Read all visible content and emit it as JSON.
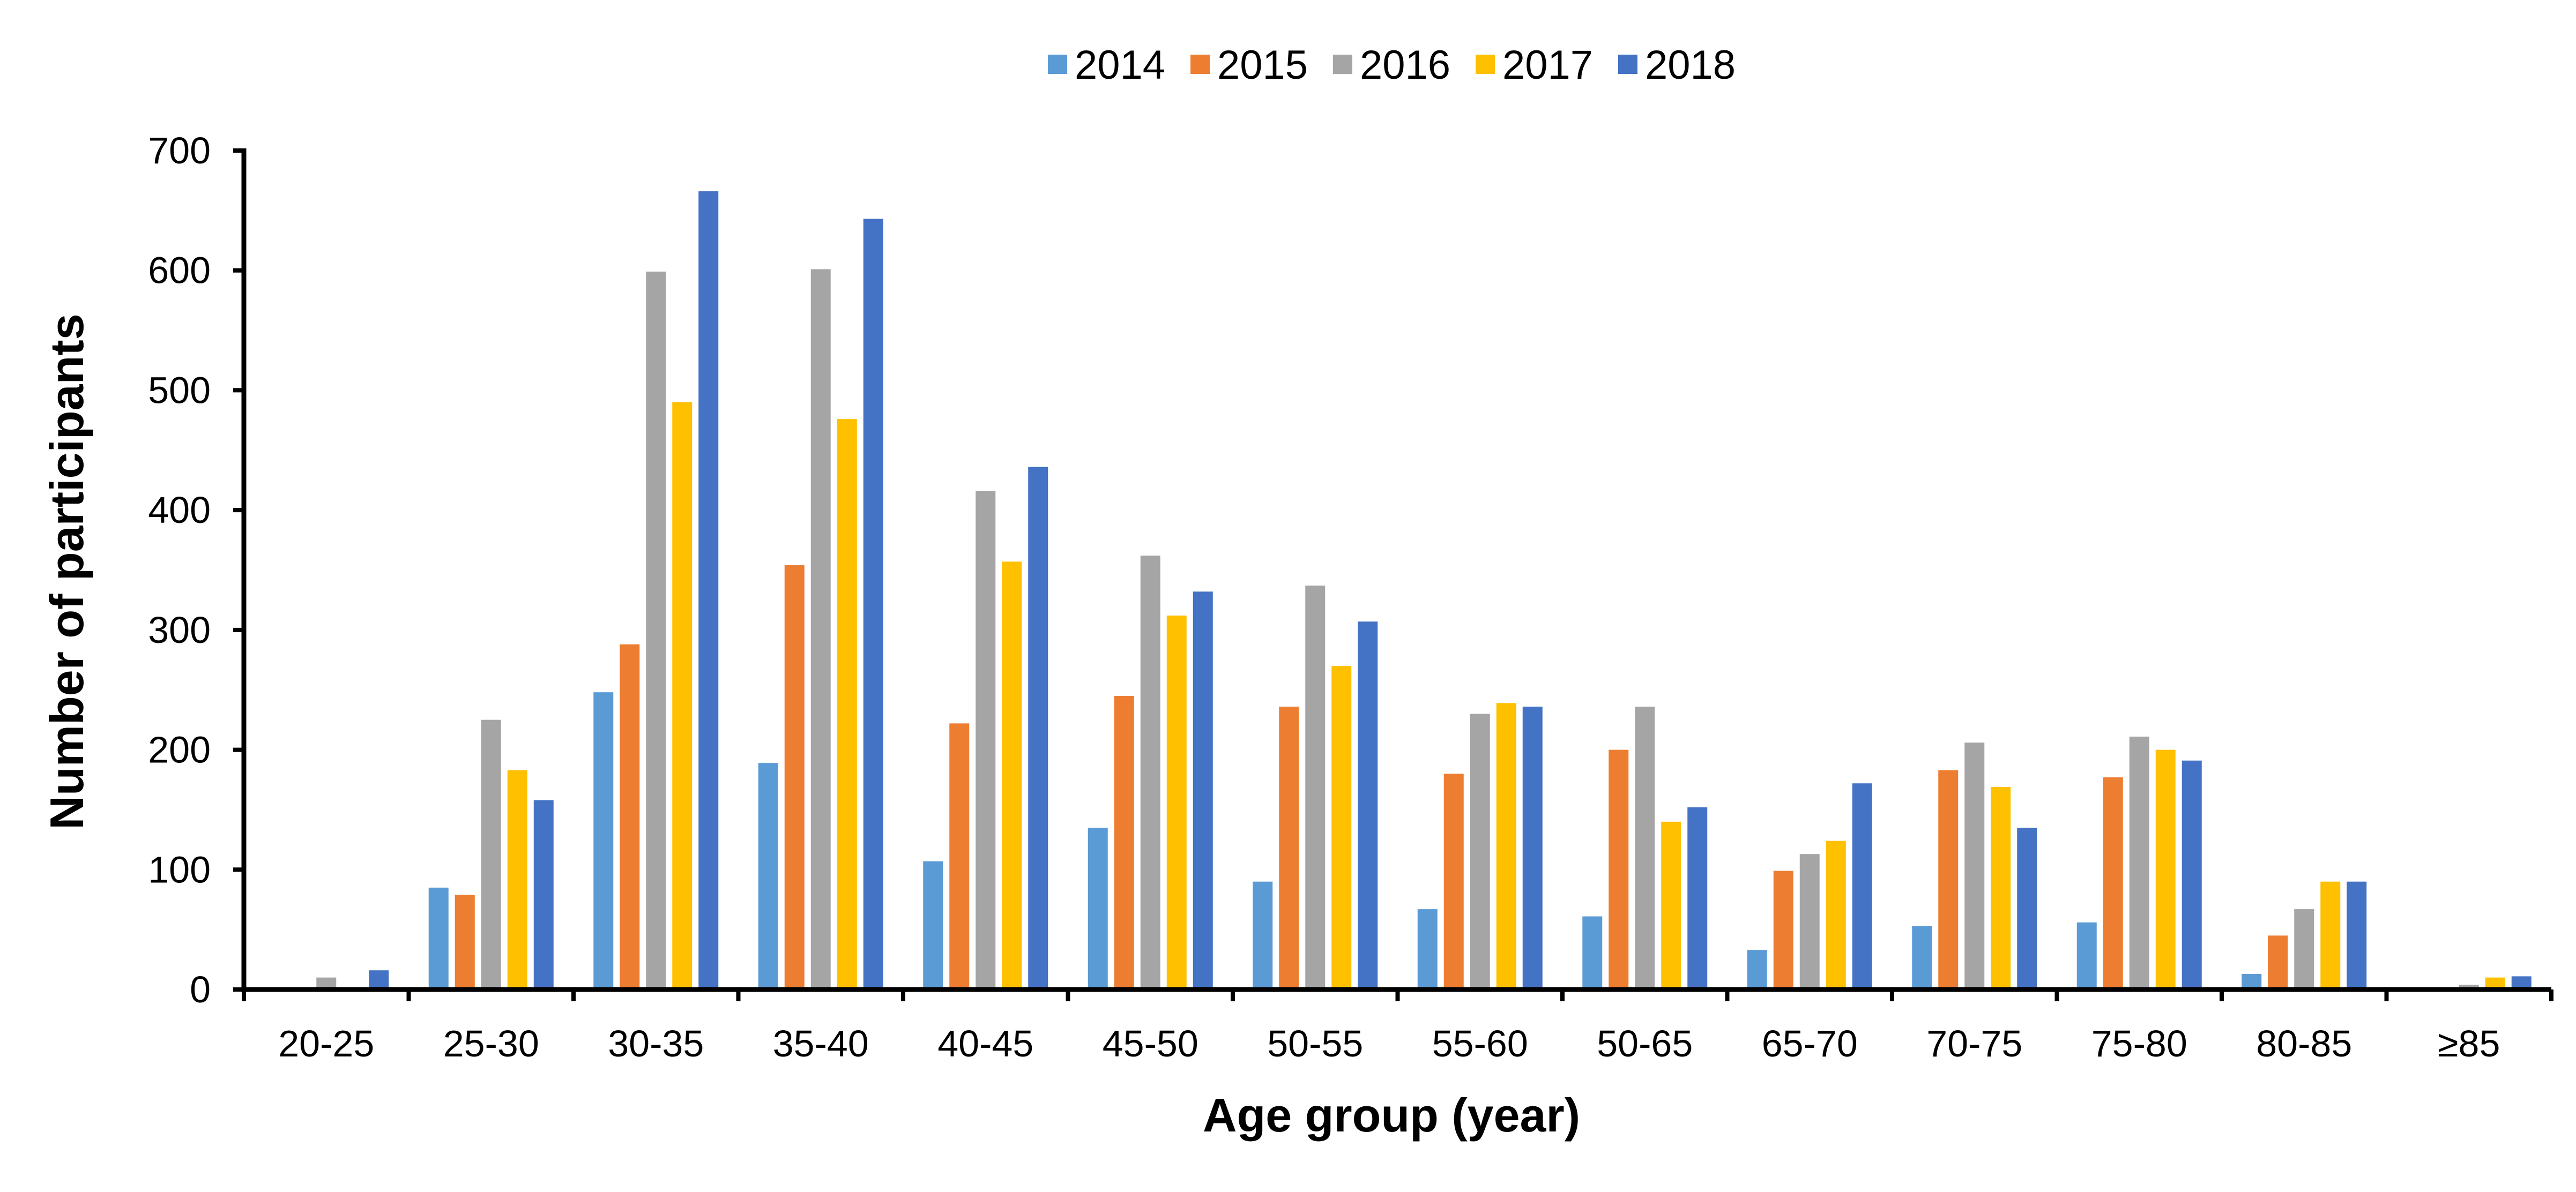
{
  "chart_data": {
    "type": "bar",
    "title": "",
    "xlabel": "Age group (year)",
    "ylabel": "Number of participants",
    "ylim": [
      0,
      700
    ],
    "yticks": [
      0,
      100,
      200,
      300,
      400,
      500,
      600,
      700
    ],
    "grid": false,
    "legend_position": "top-center",
    "categories": [
      "20-25",
      "25-30",
      "30-35",
      "35-40",
      "40-45",
      "45-50",
      "50-55",
      "55-60",
      "50-65",
      "65-70",
      "70-75",
      "75-80",
      "80-85",
      "≥85"
    ],
    "series": [
      {
        "name": "2014",
        "color": "#5B9BD5",
        "values": [
          0,
          85,
          248,
          189,
          107,
          135,
          90,
          67,
          61,
          33,
          53,
          56,
          13,
          0
        ]
      },
      {
        "name": "2015",
        "color": "#ED7D31",
        "values": [
          0,
          79,
          288,
          354,
          222,
          245,
          236,
          180,
          200,
          99,
          183,
          177,
          45,
          0
        ]
      },
      {
        "name": "2016",
        "color": "#A5A5A5",
        "values": [
          10,
          225,
          599,
          601,
          416,
          362,
          337,
          230,
          236,
          113,
          206,
          211,
          67,
          4
        ]
      },
      {
        "name": "2017",
        "color": "#FFC000",
        "values": [
          0,
          183,
          490,
          476,
          357,
          312,
          270,
          239,
          140,
          124,
          169,
          200,
          90,
          10
        ]
      },
      {
        "name": "2018",
        "color": "#4472C4",
        "values": [
          16,
          158,
          666,
          643,
          436,
          332,
          307,
          236,
          152,
          172,
          135,
          191,
          90,
          11
        ]
      }
    ]
  }
}
